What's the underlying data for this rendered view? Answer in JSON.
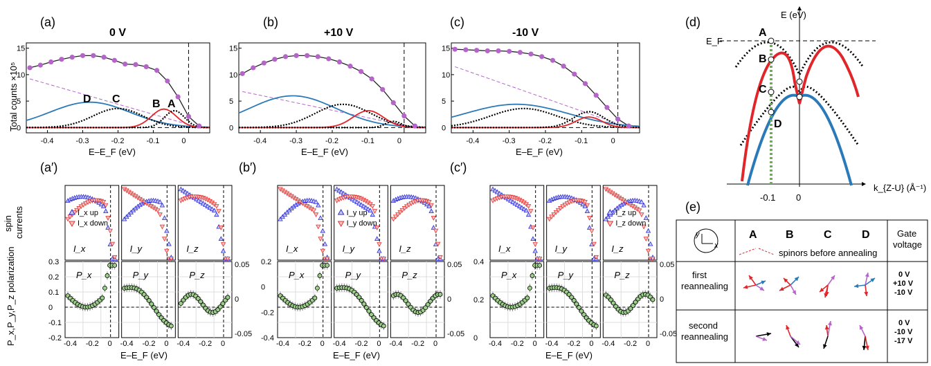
{
  "colors": {
    "purple": "#b565c9",
    "blue": "#2a7ab9",
    "red": "#e0262a",
    "green": "#6ab04c",
    "black": "#000000",
    "marker_blue": "#2b2bd9",
    "marker_red": "#e8302f"
  },
  "panels_top": [
    {
      "tag": "(a)",
      "voltage": "0 V",
      "ylabel": "Total counts ×10⁵",
      "xlabel": "E–E_F (eV)",
      "peak_labels": [
        "D",
        "C",
        "B",
        "A"
      ]
    },
    {
      "tag": "(b)",
      "voltage": "+10 V",
      "xlabel": "E–E_F (eV)"
    },
    {
      "tag": "(c)",
      "voltage": "-10 V",
      "xlabel": "E–E_F (eV)"
    }
  ],
  "panels_bottom": [
    {
      "tag": "(a′)",
      "legend": [
        "I_x up",
        "I_x down"
      ],
      "sub": [
        "I_x",
        "I_y",
        "I_z"
      ],
      "pol": [
        "P_x",
        "P_y",
        "P_z"
      ]
    },
    {
      "tag": "(b′)",
      "legend": [
        "I_y up",
        "I_y down"
      ],
      "sub": [
        "I_x",
        "I_y",
        "I_z"
      ],
      "pol": [
        "P_x",
        "P_y",
        "P_z"
      ]
    },
    {
      "tag": "(c′)",
      "legend": [
        "I_z up",
        "I_z down"
      ],
      "sub": [
        "I_x",
        "I_y",
        "I_z"
      ],
      "pol": [
        "P_x",
        "P_y",
        "P_z"
      ]
    }
  ],
  "y_labels": {
    "spin": "spin currents",
    "pol": "P_x,P_y,P_z polarization"
  },
  "x_ticks": [
    "-0.4",
    "-0.3",
    "-0.2",
    "-0.1",
    "0"
  ],
  "small_x_ticks": [
    "-0.4",
    "-0.2",
    "0"
  ],
  "top_y_ticks_a": [
    "0",
    "5",
    "10",
    "15"
  ],
  "pol_a_ticks": [
    "-0.2",
    "-0.1",
    "0",
    "0.1",
    "0.2",
    "0.3"
  ],
  "pol_b_ticks": [
    "-0.4",
    "-0.2",
    "0",
    "0.2"
  ],
  "pol_c_ticks": [
    "0",
    "0.2",
    "0.4"
  ],
  "pol_right_ticks": [
    "0.05",
    "0",
    "-0.05"
  ],
  "panel_d": {
    "tag": "(d)",
    "ylabel": "E (eV)",
    "ef": "E_F",
    "xlabel": "k_{Z-U} (Å⁻¹)",
    "ticks": [
      "-0.1",
      "0"
    ],
    "points": [
      "A",
      "B",
      "C",
      "D"
    ]
  },
  "panel_e": {
    "tag": "(e)",
    "columns": [
      "A",
      "B",
      "C",
      "D"
    ],
    "gate_header": "Gate voltage",
    "row0_text": "spinors before annealing",
    "rows": [
      {
        "label": "first reannealing",
        "voltages": [
          "0 V",
          "+10 V",
          "-10 V"
        ],
        "vcolors": [
          "#e0262a",
          "#2a7ab9",
          "#b565c9"
        ]
      },
      {
        "label": "second reannealing",
        "voltages": [
          "0 V",
          "-10 V",
          "-17 V"
        ],
        "vcolors": [
          "#e0262a",
          "#b565c9",
          "#000000"
        ]
      }
    ]
  },
  "chart_data": [
    {
      "type": "scatter",
      "title": "0 V",
      "xlabel": "E–E_F (eV)",
      "ylabel": "Total counts ×10⁵",
      "xlim": [
        -0.46,
        0.06
      ],
      "ylim": [
        -1,
        16
      ],
      "series": [
        {
          "name": "data",
          "x": [
            -0.45,
            -0.42,
            -0.39,
            -0.36,
            -0.33,
            -0.3,
            -0.27,
            -0.24,
            -0.21,
            -0.18,
            -0.15,
            -0.12,
            -0.09,
            -0.06,
            -0.03,
            0.0,
            0.03
          ],
          "values": [
            11.3,
            11.8,
            12.4,
            12.9,
            13.3,
            13.6,
            13.6,
            13.3,
            12.7,
            12.0,
            11.9,
            11.5,
            10.8,
            8.8,
            5.8,
            2.1,
            0.3
          ]
        }
      ]
    },
    {
      "type": "scatter",
      "title": "+10 V",
      "xlabel": "E–E_F (eV)",
      "xlim": [
        -0.46,
        0.06
      ],
      "ylim": [
        -1,
        16
      ],
      "series": [
        {
          "name": "data",
          "x": [
            -0.45,
            -0.42,
            -0.39,
            -0.36,
            -0.33,
            -0.3,
            -0.27,
            -0.24,
            -0.21,
            -0.18,
            -0.15,
            -0.12,
            -0.09,
            -0.06,
            -0.03,
            0.0,
            0.03
          ],
          "values": [
            10.2,
            11.3,
            12.2,
            12.9,
            13.4,
            13.6,
            13.6,
            13.4,
            13.0,
            12.4,
            11.6,
            10.6,
            9.2,
            7.2,
            4.7,
            2.2,
            0.3
          ]
        }
      ]
    },
    {
      "type": "scatter",
      "title": "-10 V",
      "xlabel": "E–E_F (eV)",
      "xlim": [
        -0.46,
        0.06
      ],
      "ylim": [
        -1,
        16
      ],
      "series": [
        {
          "name": "data",
          "x": [
            -0.45,
            -0.42,
            -0.39,
            -0.36,
            -0.33,
            -0.3,
            -0.27,
            -0.24,
            -0.21,
            -0.18,
            -0.15,
            -0.12,
            -0.09,
            -0.06,
            -0.03,
            0.0,
            0.03
          ],
          "values": [
            14.8,
            14.7,
            14.6,
            14.5,
            14.5,
            14.4,
            14.2,
            13.9,
            13.4,
            12.7,
            11.6,
            10.1,
            8.3,
            6.1,
            3.8,
            1.6,
            0.3
          ]
        }
      ]
    }
  ]
}
